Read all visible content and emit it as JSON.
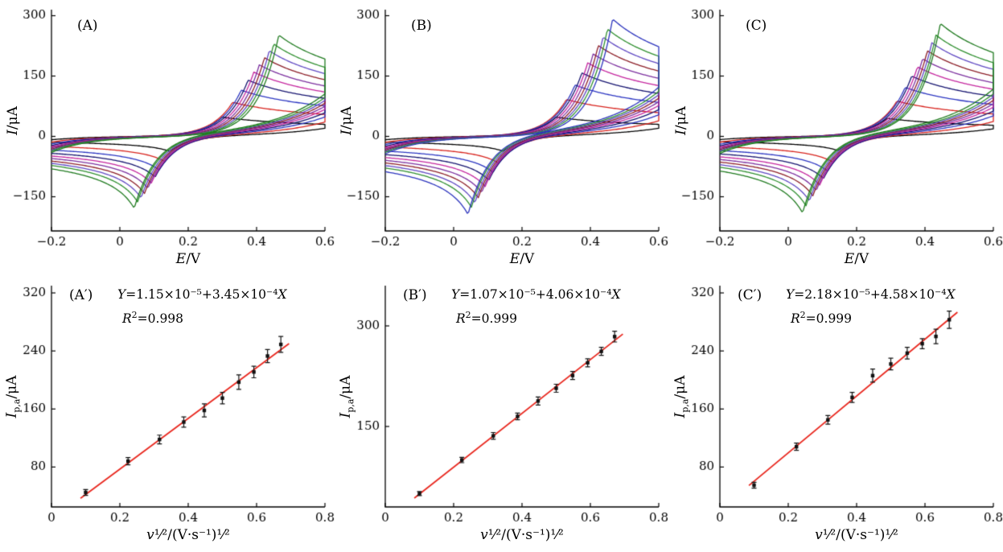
{
  "figure": {
    "background": "#ffffff"
  },
  "chart_data": [
    {
      "id": "A",
      "type": "line",
      "kind": "cyclic_voltammogram",
      "title": "(A)",
      "xlabel_main": "E",
      "xlabel_unit": "/V",
      "ylabel_main": "I",
      "ylabel_unit": "/μA",
      "xlim": [
        -0.2,
        0.6
      ],
      "ylim": [
        -235,
        315
      ],
      "xticks": [
        -0.2,
        0,
        0.2,
        0.4,
        0.6
      ],
      "yticks": [
        -150,
        0,
        150,
        300
      ],
      "series": [
        {
          "color": "#000000",
          "Ipa": 48,
          "Ipc": -38,
          "Epa": 0.3,
          "Epc": 0.145
        },
        {
          "color": "#d7231d",
          "Ipa": 85,
          "Ipc": -64,
          "Epa": 0.33,
          "Epc": 0.13
        },
        {
          "color": "#2b35c1",
          "Ipa": 115,
          "Ipc": -86,
          "Epa": 0.355,
          "Epc": 0.115
        },
        {
          "color": "#15136f",
          "Ipa": 140,
          "Ipc": -104,
          "Epa": 0.375,
          "Epc": 0.103
        },
        {
          "color": "#c4269e",
          "Ipa": 160,
          "Ipc": -119,
          "Epa": 0.392,
          "Epc": 0.092
        },
        {
          "color": "#7b2f9e",
          "Ipa": 178,
          "Ipc": -132,
          "Epa": 0.408,
          "Epc": 0.082
        },
        {
          "color": "#8c1f28",
          "Ipa": 196,
          "Ipc": -145,
          "Epa": 0.423,
          "Epc": 0.072
        },
        {
          "color": "#5f48c2",
          "Ipa": 213,
          "Ipc": -156,
          "Epa": 0.437,
          "Epc": 0.062
        },
        {
          "color": "#2f8f2f",
          "Ipa": 230,
          "Ipc": -166,
          "Epa": 0.45,
          "Epc": 0.052
        },
        {
          "color": "#1f7a1f",
          "Ipa": 252,
          "Ipc": -182,
          "Epa": 0.465,
          "Epc": 0.042
        }
      ]
    },
    {
      "id": "B",
      "type": "line",
      "kind": "cyclic_voltammogram",
      "title": "(B)",
      "xlabel_main": "E",
      "xlabel_unit": "/V",
      "ylabel_main": "I",
      "ylabel_unit": "/μA",
      "xlim": [
        -0.2,
        0.6
      ],
      "ylim": [
        -235,
        315
      ],
      "xticks": [
        -0.2,
        0,
        0.2,
        0.4,
        0.6
      ],
      "yticks": [
        -150,
        0,
        150,
        300
      ],
      "series": [
        {
          "color": "#000000",
          "Ipa": 48,
          "Ipc": -38,
          "Epa": 0.3,
          "Epc": 0.145
        },
        {
          "color": "#d7231d",
          "Ipa": 92,
          "Ipc": -68,
          "Epa": 0.33,
          "Epc": 0.13
        },
        {
          "color": "#2b35c1",
          "Ipa": 128,
          "Ipc": -92,
          "Epa": 0.355,
          "Epc": 0.115
        },
        {
          "color": "#15136f",
          "Ipa": 158,
          "Ipc": -112,
          "Epa": 0.375,
          "Epc": 0.103
        },
        {
          "color": "#c4269e",
          "Ipa": 183,
          "Ipc": -128,
          "Epa": 0.392,
          "Epc": 0.092
        },
        {
          "color": "#7b2f9e",
          "Ipa": 205,
          "Ipc": -143,
          "Epa": 0.408,
          "Epc": 0.082
        },
        {
          "color": "#8c1f28",
          "Ipa": 226,
          "Ipc": -156,
          "Epa": 0.423,
          "Epc": 0.072
        },
        {
          "color": "#5f48c2",
          "Ipa": 247,
          "Ipc": -169,
          "Epa": 0.437,
          "Epc": 0.062
        },
        {
          "color": "#2f8f2f",
          "Ipa": 267,
          "Ipc": -180,
          "Epa": 0.45,
          "Epc": 0.052
        },
        {
          "color": "#2c34bd",
          "Ipa": 292,
          "Ipc": -198,
          "Epa": 0.465,
          "Epc": 0.042
        }
      ]
    },
    {
      "id": "C",
      "type": "line",
      "kind": "cyclic_voltammogram",
      "title": "(C)",
      "xlabel_main": "E",
      "xlabel_unit": "/V",
      "ylabel_main": "I",
      "ylabel_unit": "/μA",
      "xlim": [
        -0.2,
        0.6
      ],
      "ylim": [
        -235,
        315
      ],
      "xticks": [
        -0.2,
        0,
        0.2,
        0.4,
        0.6
      ],
      "yticks": [
        -150,
        0,
        150,
        300
      ],
      "series": [
        {
          "color": "#000000",
          "Ipa": 45,
          "Ipc": -36,
          "Epa": 0.29,
          "Epc": 0.145
        },
        {
          "color": "#d7231d",
          "Ipa": 88,
          "Ipc": -66,
          "Epa": 0.318,
          "Epc": 0.13
        },
        {
          "color": "#2b35c1",
          "Ipa": 122,
          "Ipc": -89,
          "Epa": 0.342,
          "Epc": 0.115
        },
        {
          "color": "#15136f",
          "Ipa": 150,
          "Ipc": -108,
          "Epa": 0.361,
          "Epc": 0.103
        },
        {
          "color": "#c4269e",
          "Ipa": 173,
          "Ipc": -124,
          "Epa": 0.378,
          "Epc": 0.092
        },
        {
          "color": "#7b2f9e",
          "Ipa": 193,
          "Ipc": -138,
          "Epa": 0.393,
          "Epc": 0.082
        },
        {
          "color": "#8c1f28",
          "Ipa": 213,
          "Ipc": -151,
          "Epa": 0.407,
          "Epc": 0.072
        },
        {
          "color": "#5f48c2",
          "Ipa": 233,
          "Ipc": -164,
          "Epa": 0.42,
          "Epc": 0.062
        },
        {
          "color": "#2f8f2f",
          "Ipa": 252,
          "Ipc": -176,
          "Epa": 0.432,
          "Epc": 0.052
        },
        {
          "color": "#1f7a1f",
          "Ipa": 281,
          "Ipc": -194,
          "Epa": 0.445,
          "Epc": 0.042
        }
      ]
    },
    {
      "id": "A-prime",
      "type": "scatter",
      "title": "(A′)",
      "xlabel_main": "v",
      "xlabel_unit": "¹⁄²/(V·s⁻¹)¹⁄²",
      "ylabel_main": "I",
      "ylabel_sub": "p,a",
      "ylabel_unit": "/μA",
      "equation": {
        "y": "Y",
        "mid": "=1.15×10⁻⁵+3.45×10⁻⁴",
        "x": "X"
      },
      "r2": {
        "main": "R",
        "sup": "2",
        "rest": "=0.998"
      },
      "xlim": [
        0,
        0.8
      ],
      "ylim": [
        25,
        330
      ],
      "xticks": [
        0,
        0.2,
        0.4,
        0.6,
        0.8
      ],
      "yticks": [
        80,
        160,
        240,
        320
      ],
      "x": [
        0.1,
        0.224,
        0.316,
        0.387,
        0.447,
        0.5,
        0.548,
        0.592,
        0.632,
        0.671
      ],
      "y": [
        45,
        88,
        118,
        142,
        158,
        175,
        197,
        211,
        233,
        249
      ],
      "yerr": [
        4,
        5,
        6,
        7,
        9,
        8,
        10,
        8,
        9,
        11
      ],
      "fit_color": "#e8261d",
      "point_color": "#111111"
    },
    {
      "id": "B-prime",
      "type": "scatter",
      "title": "(B′)",
      "xlabel_main": "v",
      "xlabel_unit": "¹⁄²/(V·s⁻¹)¹⁄²",
      "ylabel_main": "I",
      "ylabel_sub": "p,a",
      "ylabel_unit": "/μA",
      "equation": {
        "y": "Y",
        "mid": "=1.07×10⁻⁵+4.06×10⁻⁴",
        "x": "X"
      },
      "r2": {
        "main": "R",
        "sup": "2",
        "rest": "=0.999"
      },
      "xlim": [
        0,
        0.8
      ],
      "ylim": [
        30,
        360
      ],
      "xticks": [
        0,
        0.2,
        0.4,
        0.6,
        0.8
      ],
      "yticks": [
        150,
        300
      ],
      "x": [
        0.1,
        0.224,
        0.316,
        0.387,
        0.447,
        0.5,
        0.548,
        0.592,
        0.632,
        0.671
      ],
      "y": [
        50,
        100,
        136,
        165,
        188,
        207,
        226,
        245,
        262,
        284
      ],
      "yerr": [
        3,
        4,
        5,
        5,
        6,
        6,
        6,
        6,
        6,
        8
      ],
      "fit_color": "#e8261d",
      "point_color": "#111111"
    },
    {
      "id": "C-prime",
      "type": "scatter",
      "title": "(C′)",
      "xlabel_main": "v",
      "xlabel_unit": "¹⁄²/(V·s⁻¹)¹⁄²",
      "ylabel_main": "I",
      "ylabel_sub": "p,a",
      "ylabel_unit": "/μA",
      "equation": {
        "y": "Y",
        "mid": "=2.18×10⁻⁵+4.58×10⁻⁴",
        "x": "X"
      },
      "r2": {
        "main": "R",
        "sup": "2",
        "rest": "=0.999"
      },
      "xlim": [
        0,
        0.8
      ],
      "ylim": [
        25,
        330
      ],
      "xticks": [
        0,
        0.2,
        0.4,
        0.6,
        0.8
      ],
      "yticks": [
        80,
        160,
        240,
        320
      ],
      "x": [
        0.1,
        0.224,
        0.316,
        0.387,
        0.447,
        0.5,
        0.548,
        0.592,
        0.632,
        0.671
      ],
      "y": [
        55,
        108,
        145,
        176,
        206,
        222,
        237,
        250,
        260,
        283
      ],
      "yerr": [
        4,
        5,
        6,
        7,
        9,
        8,
        8,
        7,
        10,
        12
      ],
      "fit_color": "#e8261d",
      "point_color": "#111111"
    }
  ]
}
